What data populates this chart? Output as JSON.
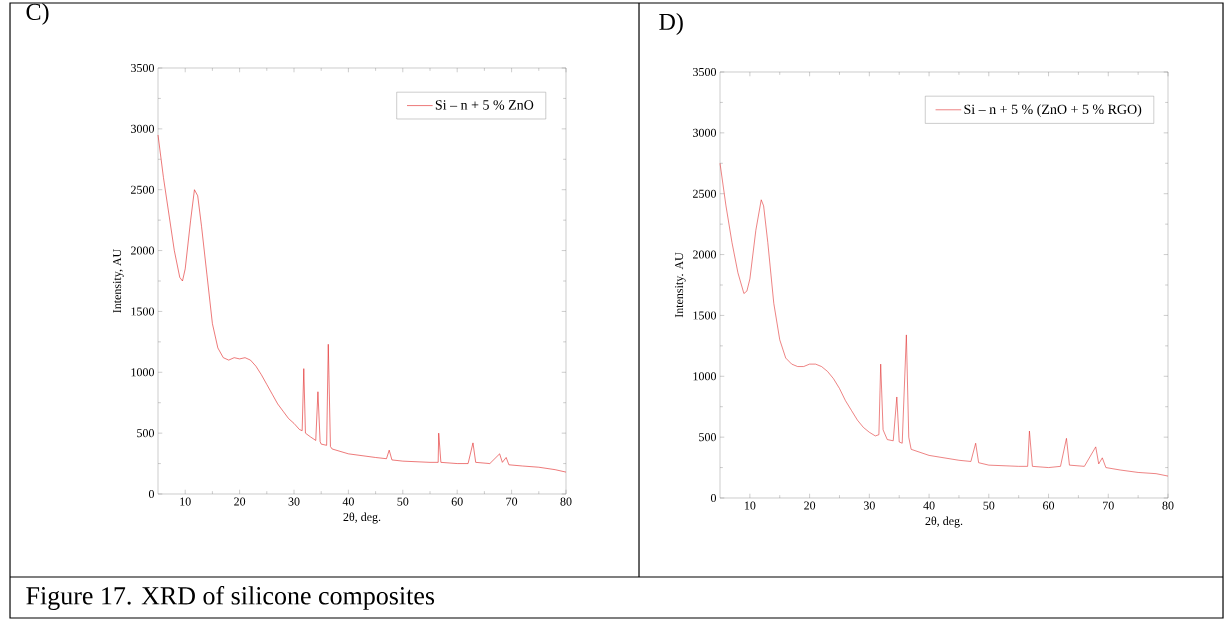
{
  "chart_data": [
    {
      "type": "line",
      "title": "C)",
      "xlabel": "2θ, deg.",
      "ylabel": "Intensity, AU",
      "xlim": [
        5,
        80
      ],
      "ylim": [
        0,
        3500
      ],
      "xticks": [
        10,
        20,
        30,
        40,
        50,
        60,
        70,
        80
      ],
      "yticks": [
        0,
        500,
        1000,
        1500,
        2000,
        2500,
        3000,
        3500
      ],
      "legend": "top right",
      "marker": "none",
      "line_style": "solid",
      "annotations": [
        "Figure 17. XRD of silicone composites"
      ],
      "series": [
        {
          "name": "Si – n + 5 % ZnO",
          "color": "#e02020",
          "x": [
            5,
            6,
            7,
            8,
            9,
            9.5,
            10,
            11,
            11.7,
            12.3,
            13,
            14,
            15,
            16,
            17,
            18,
            19,
            20,
            21,
            22,
            23,
            24,
            25,
            26,
            27,
            28,
            29,
            30,
            31,
            31.5,
            31.8,
            32.1,
            33,
            34,
            34.4,
            34.8,
            35,
            36,
            36.3,
            36.7,
            37,
            40,
            45,
            47,
            47.5,
            48,
            50,
            55,
            56.5,
            56.6,
            57,
            60,
            62,
            62.9,
            63.4,
            66,
            67.8,
            68.3,
            69,
            69.5,
            72,
            75,
            78,
            80
          ],
          "values": [
            2950,
            2600,
            2300,
            2000,
            1780,
            1750,
            1850,
            2250,
            2500,
            2450,
            2200,
            1800,
            1400,
            1200,
            1120,
            1100,
            1120,
            1110,
            1120,
            1100,
            1050,
            980,
            900,
            820,
            740,
            680,
            620,
            580,
            530,
            520,
            1030,
            500,
            470,
            440,
            840,
            430,
            410,
            400,
            1230,
            390,
            370,
            330,
            300,
            290,
            360,
            280,
            270,
            260,
            260,
            500,
            260,
            250,
            250,
            420,
            260,
            250,
            330,
            260,
            300,
            240,
            230,
            220,
            200,
            180
          ]
        }
      ]
    },
    {
      "type": "line",
      "title": "D)",
      "xlabel": "2θ, deg.",
      "ylabel": "Intensity. AU",
      "xlim": [
        5,
        80
      ],
      "ylim": [
        0,
        3500
      ],
      "xticks": [
        10,
        20,
        30,
        40,
        50,
        60,
        70,
        80
      ],
      "yticks": [
        0,
        500,
        1000,
        1500,
        2000,
        2500,
        3000,
        3500
      ],
      "legend": "top right",
      "marker": "none",
      "line_style": "solid",
      "series": [
        {
          "name": "Si – n + 5 % (ZnO + 5 % RGO)",
          "color": "#e03030",
          "x": [
            5,
            6,
            7,
            8,
            9,
            9.5,
            10,
            11,
            11.9,
            12.3,
            13,
            14,
            15,
            16,
            17,
            18,
            19,
            20,
            21,
            22,
            23,
            24,
            25,
            26,
            27,
            28,
            29,
            30,
            31,
            31.6,
            31.9,
            32.3,
            33,
            34,
            34.6,
            35,
            35.5,
            36.2,
            36.6,
            37,
            40,
            45,
            47,
            47.8,
            48.3,
            50,
            55,
            56.5,
            56.8,
            57.3,
            60,
            62,
            63,
            63.5,
            66,
            67.9,
            68.4,
            69,
            69.6,
            72,
            75,
            78,
            80
          ],
          "values": [
            2750,
            2400,
            2100,
            1850,
            1680,
            1700,
            1800,
            2200,
            2450,
            2400,
            2100,
            1600,
            1300,
            1150,
            1100,
            1080,
            1080,
            1100,
            1100,
            1080,
            1040,
            980,
            900,
            800,
            720,
            640,
            580,
            540,
            510,
            520,
            1100,
            560,
            480,
            470,
            830,
            460,
            450,
            1340,
            500,
            400,
            350,
            310,
            300,
            450,
            290,
            270,
            260,
            260,
            550,
            260,
            250,
            260,
            490,
            270,
            260,
            420,
            280,
            330,
            250,
            230,
            210,
            200,
            180
          ]
        }
      ]
    }
  ]
}
